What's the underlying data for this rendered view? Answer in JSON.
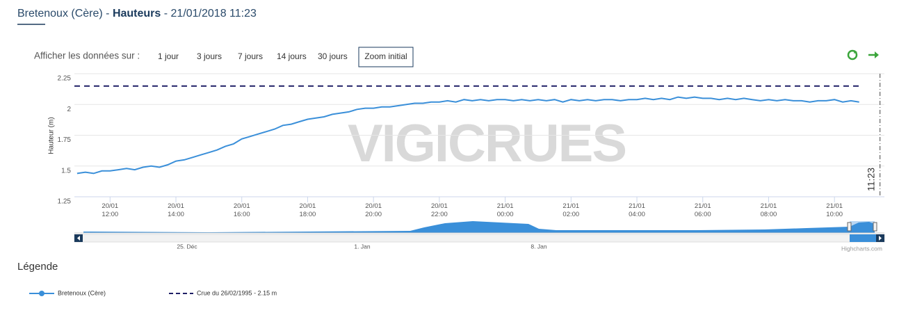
{
  "header": {
    "title_parts": [
      "Bretenoux (Cère) - ",
      "Hauteurs",
      " - 21/01/2018 11:23"
    ]
  },
  "controls": {
    "label": "Afficher les données sur :",
    "ranges": [
      "1 jour",
      "3 jours",
      "7 jours",
      "14 jours",
      "30 jours"
    ],
    "zoom": "Zoom initial"
  },
  "legend_title": "Légende",
  "navigator": {
    "labels": [
      "25. Déc",
      "1. Jan",
      "8. Jan"
    ],
    "credit": "Highcharts.com"
  },
  "chart_data": {
    "type": "line",
    "y_label": "Hauteur (m)",
    "watermark": "VIGICRUES",
    "xlim": [
      "2018-01-20 10:55",
      "2018-01-21 11:31"
    ],
    "xticks": [
      {
        "value": "2018-01-20 12:00",
        "label": "20/01\n12:00"
      },
      {
        "value": "2018-01-20 14:00",
        "label": "20/01\n14:00"
      },
      {
        "value": "2018-01-20 16:00",
        "label": "20/01\n16:00"
      },
      {
        "value": "2018-01-20 18:00",
        "label": "20/01\n18:00"
      },
      {
        "value": "2018-01-20 20:00",
        "label": "20/01\n20:00"
      },
      {
        "value": "2018-01-20 22:00",
        "label": "20/01\n22:00"
      },
      {
        "value": "2018-01-21 00:00",
        "label": "21/01\n00:00"
      },
      {
        "value": "2018-01-21 02:00",
        "label": "21/01\n02:00"
      },
      {
        "value": "2018-01-21 04:00",
        "label": "21/01\n04:00"
      },
      {
        "value": "2018-01-21 06:00",
        "label": "21/01\n06:00"
      },
      {
        "value": "2018-01-21 08:00",
        "label": "21/01\n08:00"
      },
      {
        "value": "2018-01-21 10:00",
        "label": "21/01\n10:00"
      }
    ],
    "ylim": [
      1.25,
      2.25
    ],
    "yticks": [
      1.25,
      1.5,
      1.75,
      2,
      2.25
    ],
    "grid": true,
    "x": [
      "2018-01-20 11:00",
      "2018-01-20 11:15",
      "2018-01-20 11:30",
      "2018-01-20 11:45",
      "2018-01-20 12:00",
      "2018-01-20 12:15",
      "2018-01-20 12:30",
      "2018-01-20 12:45",
      "2018-01-20 13:00",
      "2018-01-20 13:15",
      "2018-01-20 13:30",
      "2018-01-20 13:45",
      "2018-01-20 14:00",
      "2018-01-20 14:15",
      "2018-01-20 14:30",
      "2018-01-20 14:45",
      "2018-01-20 15:00",
      "2018-01-20 15:15",
      "2018-01-20 15:30",
      "2018-01-20 15:45",
      "2018-01-20 16:00",
      "2018-01-20 16:15",
      "2018-01-20 16:30",
      "2018-01-20 16:45",
      "2018-01-20 17:00",
      "2018-01-20 17:15",
      "2018-01-20 17:30",
      "2018-01-20 17:45",
      "2018-01-20 18:00",
      "2018-01-20 18:15",
      "2018-01-20 18:30",
      "2018-01-20 18:45",
      "2018-01-20 19:00",
      "2018-01-20 19:15",
      "2018-01-20 19:30",
      "2018-01-20 19:45",
      "2018-01-20 20:00",
      "2018-01-20 20:15",
      "2018-01-20 20:30",
      "2018-01-20 20:45",
      "2018-01-20 21:00",
      "2018-01-20 21:15",
      "2018-01-20 21:30",
      "2018-01-20 21:45",
      "2018-01-20 22:00",
      "2018-01-20 22:15",
      "2018-01-20 22:30",
      "2018-01-20 22:45",
      "2018-01-20 23:00",
      "2018-01-20 23:15",
      "2018-01-20 23:30",
      "2018-01-20 23:45",
      "2018-01-21 00:00",
      "2018-01-21 00:15",
      "2018-01-21 00:30",
      "2018-01-21 00:45",
      "2018-01-21 01:00",
      "2018-01-21 01:15",
      "2018-01-21 01:30",
      "2018-01-21 01:45",
      "2018-01-21 02:00",
      "2018-01-21 02:15",
      "2018-01-21 02:30",
      "2018-01-21 02:45",
      "2018-01-21 03:00",
      "2018-01-21 03:15",
      "2018-01-21 03:30",
      "2018-01-21 03:45",
      "2018-01-21 04:00",
      "2018-01-21 04:15",
      "2018-01-21 04:30",
      "2018-01-21 04:45",
      "2018-01-21 05:00",
      "2018-01-21 05:15",
      "2018-01-21 05:30",
      "2018-01-21 05:45",
      "2018-01-21 06:00",
      "2018-01-21 06:15",
      "2018-01-21 06:30",
      "2018-01-21 06:45",
      "2018-01-21 07:00",
      "2018-01-21 07:15",
      "2018-01-21 07:30",
      "2018-01-21 07:45",
      "2018-01-21 08:00",
      "2018-01-21 08:15",
      "2018-01-21 08:30",
      "2018-01-21 08:45",
      "2018-01-21 09:00",
      "2018-01-21 09:15",
      "2018-01-21 09:30",
      "2018-01-21 09:45",
      "2018-01-21 10:00",
      "2018-01-21 10:15",
      "2018-01-21 10:30",
      "2018-01-21 10:45"
    ],
    "series": [
      {
        "name": "Bretenoux (Cère)",
        "color": "#3a8fd9",
        "values": [
          1.44,
          1.45,
          1.44,
          1.46,
          1.46,
          1.47,
          1.48,
          1.47,
          1.49,
          1.5,
          1.49,
          1.51,
          1.54,
          1.55,
          1.57,
          1.59,
          1.61,
          1.63,
          1.66,
          1.68,
          1.72,
          1.74,
          1.76,
          1.78,
          1.8,
          1.83,
          1.84,
          1.86,
          1.88,
          1.89,
          1.9,
          1.92,
          1.93,
          1.94,
          1.96,
          1.97,
          1.97,
          1.98,
          1.98,
          1.99,
          2.0,
          2.01,
          2.01,
          2.02,
          2.02,
          2.03,
          2.02,
          2.04,
          2.03,
          2.04,
          2.03,
          2.04,
          2.04,
          2.03,
          2.04,
          2.03,
          2.04,
          2.03,
          2.04,
          2.02,
          2.04,
          2.03,
          2.04,
          2.03,
          2.04,
          2.04,
          2.03,
          2.04,
          2.04,
          2.05,
          2.04,
          2.05,
          2.04,
          2.06,
          2.05,
          2.06,
          2.05,
          2.05,
          2.04,
          2.05,
          2.04,
          2.05,
          2.04,
          2.03,
          2.04,
          2.03,
          2.04,
          2.03,
          2.03,
          2.02,
          2.03,
          2.03,
          2.04,
          2.02,
          2.03,
          2.02
        ]
      }
    ],
    "thresholds": [
      {
        "name": "Crue du 26/02/1995 - 2.15 m",
        "value": 2.15,
        "color": "#1f1f66"
      }
    ],
    "now_line": {
      "value": "2018-01-21 11:23",
      "label": "11:23"
    }
  }
}
